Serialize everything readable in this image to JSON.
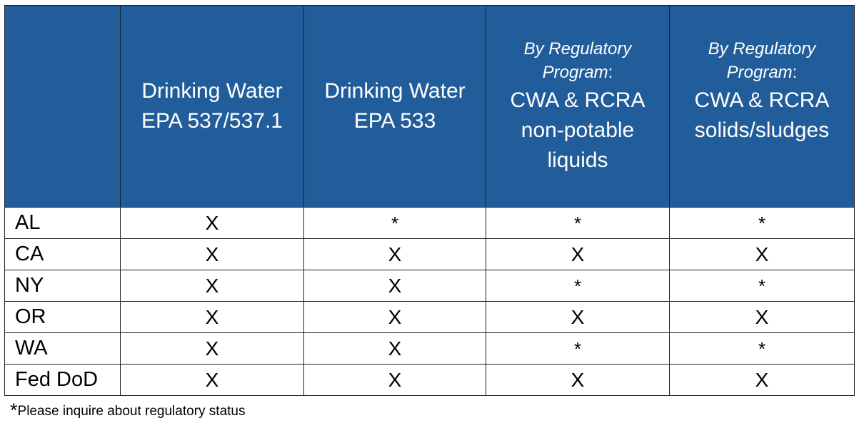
{
  "table": {
    "columns": [
      {
        "lines": []
      },
      {
        "lines": [
          "Drinking Water",
          "EPA 537/537.1"
        ]
      },
      {
        "lines": [
          "Drinking Water",
          "EPA 533"
        ]
      },
      {
        "prefix": "By Regulatory",
        "prefix2": "Program",
        "colon": ":",
        "lines": [
          "CWA & RCRA",
          "non-potable",
          "liquids"
        ]
      },
      {
        "prefix": "By Regulatory",
        "prefix2": "Program",
        "colon": ":",
        "lines": [
          "CWA & RCRA",
          "solids/sludges"
        ]
      }
    ],
    "rows": [
      {
        "state": "AL",
        "cells": [
          "X",
          "*",
          "*",
          "*"
        ]
      },
      {
        "state": "CA",
        "cells": [
          "X",
          "X",
          "X",
          "X"
        ]
      },
      {
        "state": "NY",
        "cells": [
          "X",
          "X",
          "*",
          "*"
        ]
      },
      {
        "state": "OR",
        "cells": [
          "X",
          "X",
          "X",
          "X"
        ]
      },
      {
        "state": "WA",
        "cells": [
          "X",
          "X",
          "*",
          "*"
        ]
      },
      {
        "state": "Fed DoD",
        "cells": [
          "X",
          "X",
          "X",
          "X"
        ]
      }
    ]
  },
  "footnote": {
    "mark": "*",
    "text": "Please inquire about regulatory status"
  },
  "colors": {
    "header_bg": "#215d9a",
    "header_text": "#ffffff",
    "grid": "#1f1f1f"
  }
}
